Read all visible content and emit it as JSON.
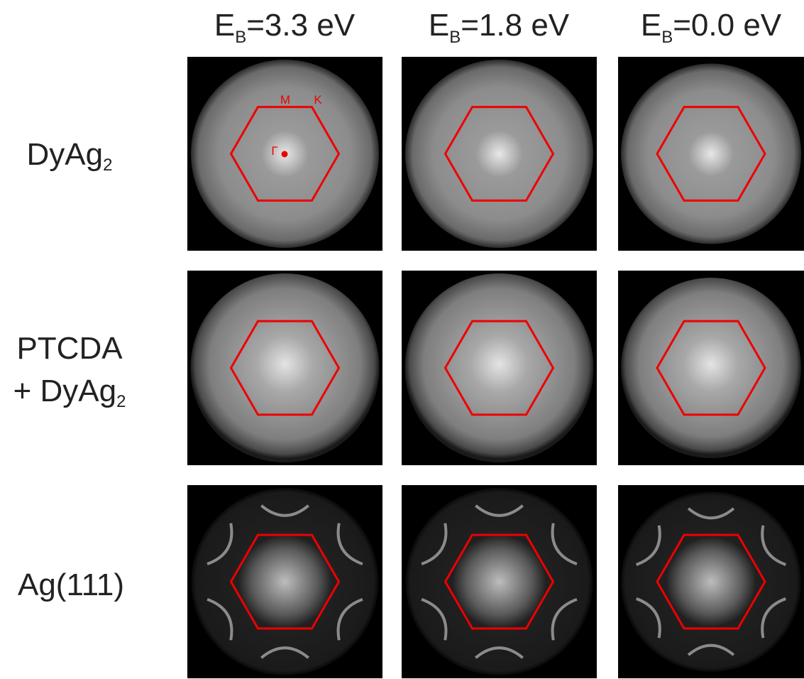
{
  "columns": [
    {
      "symbol": "E",
      "subscript": "B",
      "value": "=3.3 eV"
    },
    {
      "symbol": "E",
      "subscript": "B",
      "value": "=1.8 eV"
    },
    {
      "symbol": "E",
      "subscript": "B",
      "value": "=0.0 eV"
    }
  ],
  "rows": [
    {
      "lines": [
        {
          "text": "DyAg",
          "subscript": "2"
        }
      ]
    },
    {
      "lines": [
        {
          "text": "PTCDA"
        },
        {
          "text": "+ DyAg",
          "subscript": "2"
        }
      ]
    },
    {
      "lines": [
        {
          "text": "Ag(111)"
        }
      ]
    }
  ],
  "annotations": [
    "M",
    "K",
    "Γ"
  ]
}
